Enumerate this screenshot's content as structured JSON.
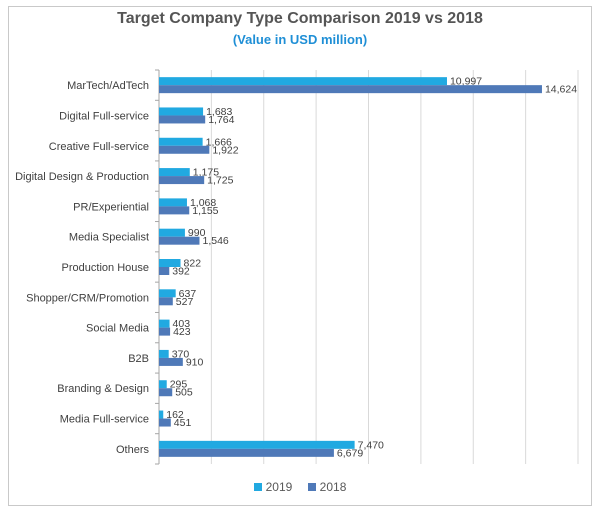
{
  "colors": {
    "series_2019": "#21a9e1",
    "series_2018": "#4f79b8",
    "grid": "#d9d9d9",
    "axis": "#a6a6a6"
  },
  "chart_data": {
    "type": "bar",
    "orientation": "horizontal",
    "title": "Target Company Type Comparison 2019 vs 2018",
    "subtitle": "(Value in USD million)",
    "categories": [
      "MarTech/AdTech",
      "Digital Full-service",
      "Creative Full-service",
      "Digital Design & Production",
      "PR/Experiential",
      "Media Specialist",
      "Production House",
      "Shopper/CRM/Promotion",
      "Social Media",
      "B2B",
      "Branding & Design",
      "Media Full-service",
      "Others"
    ],
    "series": [
      {
        "name": "2019",
        "values": [
          10997,
          1683,
          1666,
          1175,
          1068,
          990,
          822,
          637,
          403,
          370,
          295,
          162,
          7470
        ],
        "labels": [
          "10,997",
          "1,683",
          "1,666",
          "1,175",
          "1,068",
          "990",
          "822",
          "637",
          "403",
          "370",
          "295",
          "162",
          "7,470"
        ]
      },
      {
        "name": "2018",
        "values": [
          14624,
          1764,
          1922,
          1725,
          1155,
          1546,
          392,
          527,
          423,
          910,
          505,
          451,
          6679
        ],
        "labels": [
          "14,624",
          "1,764",
          "1,922",
          "1,725",
          "1,155",
          "1,546",
          "392",
          "527",
          "423",
          "910",
          "505",
          "451",
          "6,679"
        ]
      }
    ],
    "xlim": [
      0,
      16000
    ],
    "grid": true,
    "legend_position": "bottom"
  }
}
